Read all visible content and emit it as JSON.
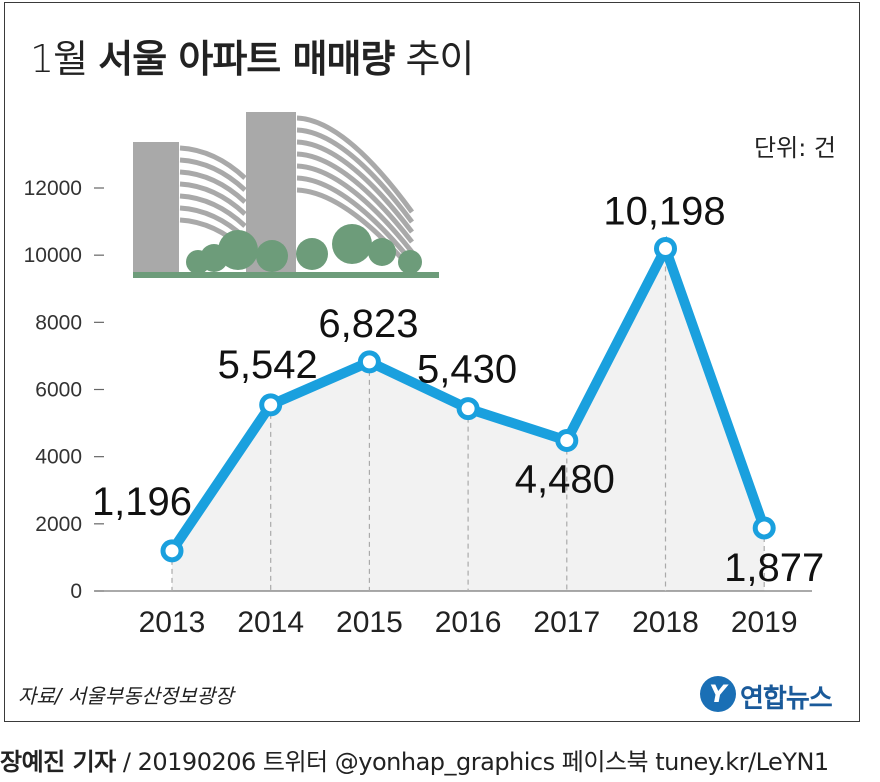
{
  "header": {
    "title_prefix": "1월",
    "title_bold": "서울 아파트 매매량",
    "title_suffix": "추이",
    "unit": "단위: 건"
  },
  "footer": {
    "source": "자료/ 서울부동산정보광장",
    "logo_text": "연합뉴스",
    "credit_bold": "장예진 기자",
    "credit_rest": " / 20190206 트위터 @yonhap_graphics  페이스북 tuney.kr/LeYN1"
  },
  "colors": {
    "line": "#1aa0de",
    "area": "#f2f2f2",
    "building": "#a3a3a3",
    "trees": "#6d9c7a"
  },
  "chart_data": {
    "type": "line",
    "title": "1월 서울 아파트 매매량 추이",
    "xlabel": "",
    "ylabel": "",
    "unit": "단위: 건",
    "categories": [
      "2013",
      "2014",
      "2015",
      "2016",
      "2017",
      "2018",
      "2019"
    ],
    "values": [
      1196,
      5542,
      6823,
      5430,
      4480,
      10198,
      1877
    ],
    "value_labels": [
      "1,196",
      "5,542",
      "6,823",
      "5,430",
      "4,480",
      "10,198",
      "1,877"
    ],
    "ylim": [
      0,
      12000
    ],
    "yticks": [
      0,
      2000,
      4000,
      6000,
      8000,
      10000,
      12000
    ],
    "grid": false
  }
}
